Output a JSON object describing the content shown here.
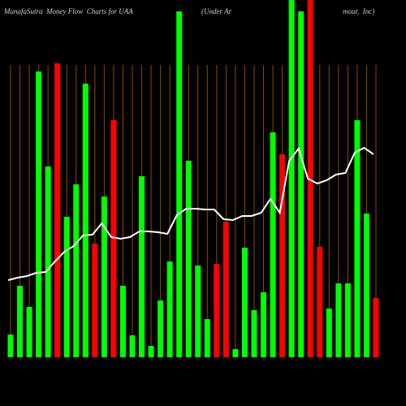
{
  "chart_data": {
    "type": "bar",
    "title": "MunafaSutra  Money Flow  Charts for UAA",
    "subtitle_parts": [
      "(Under Ar",
      "mour,  Inc)"
    ],
    "values": [
      28,
      88,
      62,
      352,
      235,
      362,
      173,
      213,
      337,
      140,
      198,
      292,
      88,
      27,
      223,
      14,
      70,
      118,
      426,
      242,
      113,
      47,
      115,
      167,
      10,
      135,
      58,
      80,
      277,
      250,
      460,
      426,
      460,
      136,
      60,
      91,
      91,
      292,
      177,
      73
    ],
    "colors": [
      "#00ff00",
      "#00ff00",
      "#00ff00",
      "#00ff00",
      "#00ff00",
      "#ff0000",
      "#00ff00",
      "#00ff00",
      "#00ff00",
      "#ff0000",
      "#00ff00",
      "#ff0000",
      "#00ff00",
      "#00ff00",
      "#00ff00",
      "#00ff00",
      "#00ff00",
      "#00ff00",
      "#00ff00",
      "#00ff00",
      "#00ff00",
      "#00ff00",
      "#ff0000",
      "#ff0000",
      "#00ff00",
      "#00ff00",
      "#00ff00",
      "#00ff00",
      "#00ff00",
      "#ff0000",
      "#00ff00",
      "#00ff00",
      "#ff0000",
      "#ff0000",
      "#00ff00",
      "#00ff00",
      "#00ff00",
      "#00ff00",
      "#00ff00",
      "#ff0000"
    ],
    "line": {
      "color": "#ffffff",
      "values": [
        95,
        98,
        100,
        104,
        105,
        118,
        130,
        137,
        150,
        151,
        165,
        148,
        146,
        148,
        155,
        155,
        154,
        152,
        175,
        183,
        183,
        182,
        182,
        170,
        169,
        174,
        174,
        178,
        195,
        178,
        242,
        257,
        220,
        214,
        218,
        225,
        227,
        252,
        258,
        250
      ]
    },
    "ylim": [
      0,
      440
    ],
    "grid": true,
    "grid_color": "#8b4a00"
  }
}
